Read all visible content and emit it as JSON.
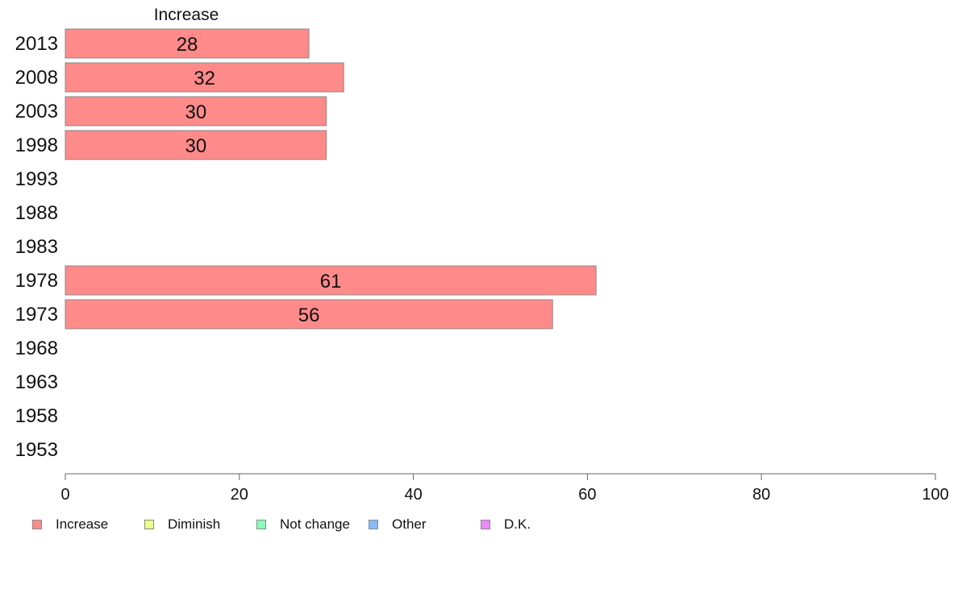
{
  "chart_data": {
    "type": "bar",
    "orientation": "horizontal",
    "title": "Increase",
    "categories": [
      "2013",
      "2008",
      "2003",
      "1998",
      "1993",
      "1988",
      "1983",
      "1978",
      "1973",
      "1968",
      "1963",
      "1958",
      "1953"
    ],
    "series": [
      {
        "name": "Increase",
        "values": [
          28,
          32,
          30,
          30,
          null,
          null,
          null,
          61,
          56,
          null,
          null,
          null,
          null
        ],
        "color": "#ff8a8a"
      }
    ],
    "data_labels": [
      "28",
      "32",
      "30",
      "30",
      "",
      "",
      "",
      "61",
      "56",
      "",
      "",
      "",
      ""
    ],
    "xlim": [
      0,
      100
    ],
    "xticks": [
      "0",
      "20",
      "40",
      "60",
      "80",
      "100"
    ],
    "grid": false,
    "legend": {
      "placement": "bottom",
      "items": [
        {
          "label": "Increase",
          "color": "#ff8a8a"
        },
        {
          "label": "Diminish",
          "color": "#eeff88"
        },
        {
          "label": "Not change",
          "color": "#88ffbb"
        },
        {
          "label": "Other",
          "color": "#88bbff"
        },
        {
          "label": "D.K.",
          "color": "#ee88ff"
        }
      ]
    }
  }
}
